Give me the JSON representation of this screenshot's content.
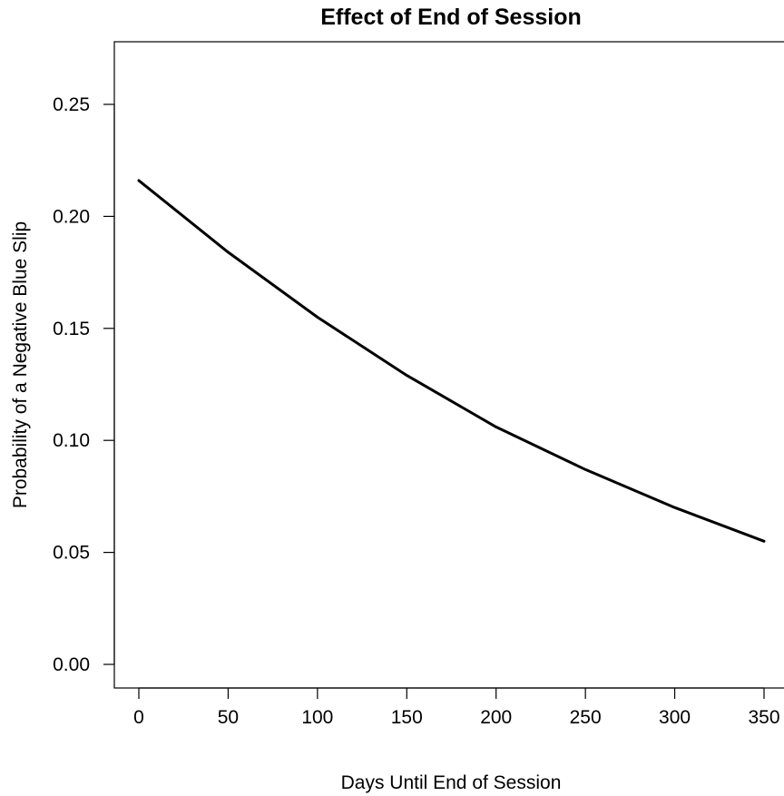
{
  "chart_data": {
    "type": "line",
    "title": "Effect of End of Session",
    "xlabel": "Days Until End of Session",
    "ylabel": "Probability of a Negative Blue Slip",
    "xlim": [
      0,
      350
    ],
    "ylim": [
      0,
      0.25
    ],
    "xticks": [
      "0",
      "50",
      "100",
      "150",
      "200",
      "250",
      "300",
      "350"
    ],
    "yticks": [
      "0.00",
      "0.05",
      "0.10",
      "0.15",
      "0.20",
      "0.25"
    ],
    "grid": false,
    "legend": "none",
    "line_color": "#000000",
    "series": [
      {
        "x": [
          0,
          50,
          100,
          150,
          200,
          250,
          300,
          350
        ],
        "values": [
          0.216,
          0.184,
          0.155,
          0.129,
          0.106,
          0.087,
          0.07,
          0.055
        ]
      }
    ]
  }
}
